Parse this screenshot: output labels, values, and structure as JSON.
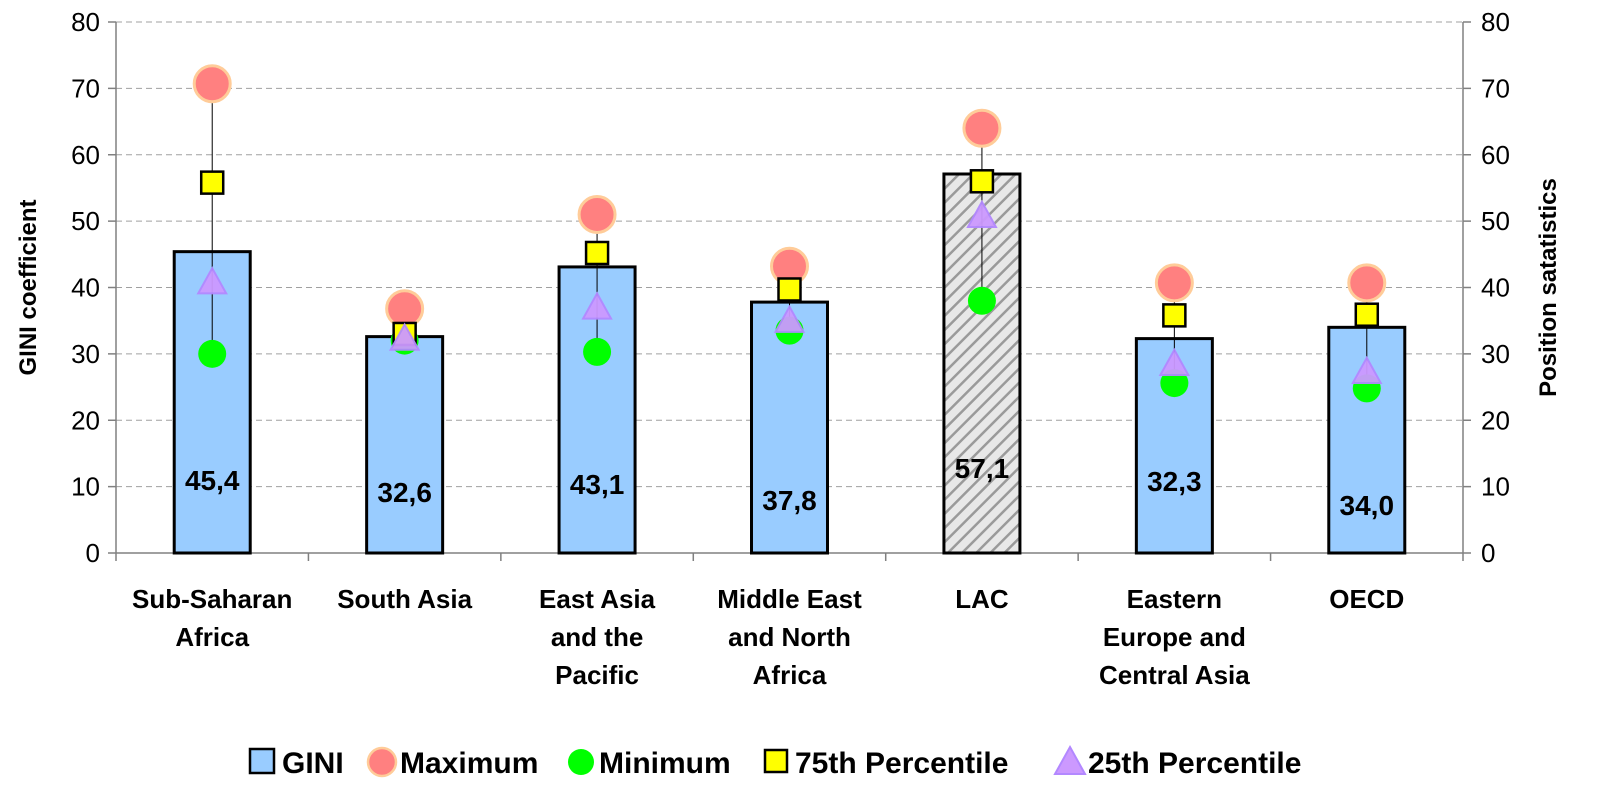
{
  "chart_data": {
    "type": "bar",
    "categories": [
      [
        "Sub-Saharan",
        "Africa"
      ],
      [
        "South Asia"
      ],
      [
        "East Asia",
        "and the",
        "Pacific"
      ],
      [
        "Middle East",
        "and North",
        "Africa"
      ],
      [
        "LAC"
      ],
      [
        "Eastern",
        "Europe and",
        "Central Asia"
      ],
      [
        "OECD"
      ]
    ],
    "series": [
      {
        "name": "GINI",
        "kind": "bar",
        "values": [
          45.4,
          32.6,
          43.1,
          37.8,
          57.1,
          32.3,
          34.0
        ],
        "color": "#99CCFF",
        "highlight_index": 4
      },
      {
        "name": "Maximum",
        "kind": "marker",
        "marker": "circle",
        "values": [
          70.7,
          36.8,
          51.0,
          43.2,
          64.0,
          40.7,
          40.7
        ],
        "color": "#FF8080"
      },
      {
        "name": "Minimum",
        "kind": "marker",
        "marker": "circle",
        "values": [
          30.0,
          32.0,
          30.3,
          33.5,
          38.0,
          25.6,
          24.8
        ],
        "color": "#00FF00"
      },
      {
        "name": "75th Percentile",
        "kind": "marker",
        "marker": "square",
        "values": [
          55.8,
          33.0,
          45.2,
          39.7,
          56.0,
          35.8,
          35.9
        ],
        "color": "#FFFF00"
      },
      {
        "name": "25th Percentile",
        "kind": "marker",
        "marker": "triangle",
        "values": [
          40.8,
          32.3,
          37.0,
          35.0,
          50.8,
          28.5,
          27.3
        ],
        "color": "#CC99FF"
      }
    ],
    "bar_labels": [
      "45,4",
      "32,6",
      "43,1",
      "37,8",
      "57,1",
      "32,3",
      "34,0"
    ],
    "ylabel": "GINI coefficient",
    "y2label": "Position satatistics",
    "ylim": [
      0,
      80
    ],
    "y2lim": [
      0,
      80
    ],
    "yticks": [
      0,
      10,
      20,
      30,
      40,
      50,
      60,
      70,
      80
    ],
    "grid": true,
    "legend_position": "bottom"
  }
}
